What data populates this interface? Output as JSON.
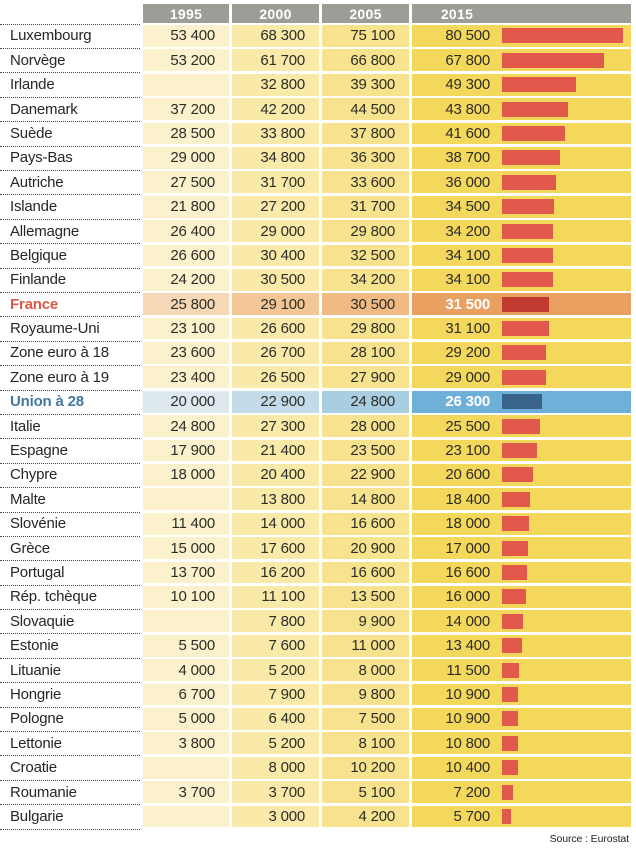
{
  "chart_data": {
    "type": "table",
    "columns": [
      "1995",
      "2000",
      "2005",
      "2015"
    ],
    "bar_column": "2015",
    "bar_max": 80500,
    "rows": [
      {
        "label": "Luxembourg",
        "values": [
          "53 400",
          "68 300",
          "75 100",
          "80 500"
        ],
        "bar": 80500
      },
      {
        "label": "Norvège",
        "values": [
          "53 200",
          "61 700",
          "66 800",
          "67 800"
        ],
        "bar": 67800
      },
      {
        "label": "Irlande",
        "values": [
          "",
          "32 800",
          "39 300",
          "49 300"
        ],
        "bar": 49300
      },
      {
        "label": "Danemark",
        "values": [
          "37 200",
          "42 200",
          "44 500",
          "43 800"
        ],
        "bar": 43800
      },
      {
        "label": "Suède",
        "values": [
          "28 500",
          "33 800",
          "37 800",
          "41 600"
        ],
        "bar": 41600
      },
      {
        "label": "Pays-Bas",
        "values": [
          "29 000",
          "34 800",
          "36 300",
          "38 700"
        ],
        "bar": 38700
      },
      {
        "label": "Autriche",
        "values": [
          "27 500",
          "31 700",
          "33 600",
          "36 000"
        ],
        "bar": 36000
      },
      {
        "label": "Islande",
        "values": [
          "21 800",
          "27 200",
          "31 700",
          "34 500"
        ],
        "bar": 34500
      },
      {
        "label": "Allemagne",
        "values": [
          "26 400",
          "29 000",
          "29 800",
          "34 200"
        ],
        "bar": 34200
      },
      {
        "label": "Belgique",
        "values": [
          "26 600",
          "30 400",
          "32 500",
          "34 100"
        ],
        "bar": 34100
      },
      {
        "label": "Finlande",
        "values": [
          "24 200",
          "30 500",
          "34 200",
          "34 100"
        ],
        "bar": 34100
      },
      {
        "label": "France",
        "values": [
          "25 800",
          "29 100",
          "30 500",
          "31 500"
        ],
        "bar": 31500,
        "highlight": "france"
      },
      {
        "label": "Royaume-Uni",
        "values": [
          "23 100",
          "26 600",
          "29 800",
          "31 100"
        ],
        "bar": 31100
      },
      {
        "label": "Zone euro à 18",
        "values": [
          "23 600",
          "26 700",
          "28 100",
          "29 200"
        ],
        "bar": 29200
      },
      {
        "label": "Zone euro à 19",
        "values": [
          "23 400",
          "26 500",
          "27 900",
          "29 000"
        ],
        "bar": 29000
      },
      {
        "label": "Union à 28",
        "values": [
          "20 000",
          "22 900",
          "24 800",
          "26 300"
        ],
        "bar": 26300,
        "highlight": "eu"
      },
      {
        "label": "Italie",
        "values": [
          "24 800",
          "27 300",
          "28 000",
          "25 500"
        ],
        "bar": 25500
      },
      {
        "label": "Espagne",
        "values": [
          "17 900",
          "21 400",
          "23 500",
          "23 100"
        ],
        "bar": 23100
      },
      {
        "label": "Chypre",
        "values": [
          "18 000",
          "20 400",
          "22 900",
          "20 600"
        ],
        "bar": 20600
      },
      {
        "label": "Malte",
        "values": [
          "",
          "13 800",
          "14 800",
          "18 400"
        ],
        "bar": 18400
      },
      {
        "label": "Slovénie",
        "values": [
          "11 400",
          "14 000",
          "16 600",
          "18 000"
        ],
        "bar": 18000
      },
      {
        "label": "Grèce",
        "values": [
          "15 000",
          "17 600",
          "20 900",
          "17 000"
        ],
        "bar": 17000
      },
      {
        "label": "Portugal",
        "values": [
          "13 700",
          "16 200",
          "16 600",
          "16 600"
        ],
        "bar": 16600
      },
      {
        "label": "Rép. tchèque",
        "values": [
          "10 100",
          "11 100",
          "13 500",
          "16 000"
        ],
        "bar": 16000
      },
      {
        "label": "Slovaquie",
        "values": [
          "",
          "7 800",
          "9 900",
          "14 000"
        ],
        "bar": 14000
      },
      {
        "label": "Estonie",
        "values": [
          "5 500",
          "7 600",
          "11 000",
          "13 400"
        ],
        "bar": 13400
      },
      {
        "label": "Lituanie",
        "values": [
          "4 000",
          "5 200",
          "8 000",
          "11 500"
        ],
        "bar": 11500
      },
      {
        "label": "Hongrie",
        "values": [
          "6 700",
          "7 900",
          "9 800",
          "10 900"
        ],
        "bar": 10900
      },
      {
        "label": "Pologne",
        "values": [
          "5 000",
          "6 400",
          "7 500",
          "10 900"
        ],
        "bar": 10900
      },
      {
        "label": "Lettonie",
        "values": [
          "3 800",
          "5 200",
          "8 100",
          "10 800"
        ],
        "bar": 10800
      },
      {
        "label": "Croatie",
        "values": [
          "",
          "8 000",
          "10 200",
          "10 400"
        ],
        "bar": 10400
      },
      {
        "label": "Roumanie",
        "values": [
          "3 700",
          "3 700",
          "5 100",
          "7 200"
        ],
        "bar": 7200
      },
      {
        "label": "Bulgarie",
        "values": [
          "",
          "3 000",
          "4 200",
          "5 700"
        ],
        "bar": 5700
      }
    ],
    "source": "Source : Eurostat"
  },
  "colors": {
    "header_bg": "#9b9e96",
    "header_text": "#ffffff",
    "cell_text": "#2d2d27",
    "divider": "#4a4a44",
    "source_text": "#222222",
    "row_palettes": {
      "default": {
        "cells": [
          "#fbf2cd",
          "#f9eaa9",
          "#f7e38d",
          "#f3d85c"
        ],
        "bar": "#e2584a",
        "label": "#262622"
      },
      "france": {
        "cells": [
          "#f7d8b6",
          "#f3c795",
          "#f0ba82",
          "#e9a060"
        ],
        "bar": "#c23b31",
        "label": "#e0564a"
      },
      "eu": {
        "cells": [
          "#dde9ef",
          "#c3dbe9",
          "#a9cde1",
          "#6fb0d8"
        ],
        "bar": "#3a648c",
        "label": "#44799f"
      }
    }
  }
}
